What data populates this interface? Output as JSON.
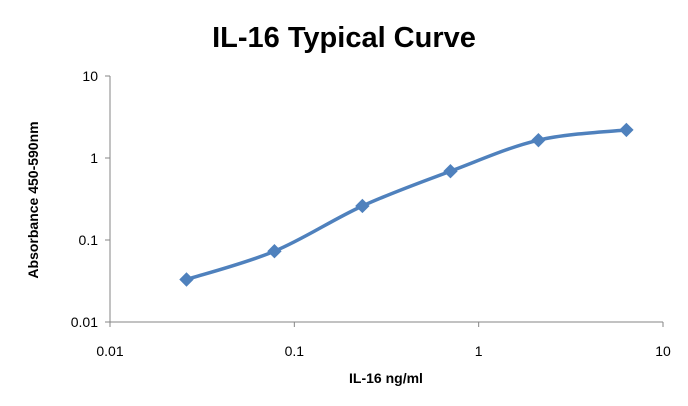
{
  "chart_data": {
    "type": "line",
    "title": "IL-16 Typical Curve",
    "xlabel": "IL-16 ng/ml",
    "ylabel": "Absorbance 450-590nm",
    "x_scale": "log",
    "y_scale": "log",
    "xlim": [
      0.01,
      10
    ],
    "ylim": [
      0.01,
      10
    ],
    "x_ticks": [
      0.01,
      0.1,
      1,
      10
    ],
    "x_tick_labels": [
      "0.01",
      "0.1",
      "1",
      "10"
    ],
    "y_ticks": [
      0.01,
      0.1,
      1,
      10
    ],
    "y_tick_labels": [
      "0.01",
      "0.1",
      "1",
      "10"
    ],
    "grid": false,
    "legend": "none",
    "marker": "diamond",
    "line_style": "smooth",
    "series": [
      {
        "color": "#4F81BD",
        "x": [
          0.026,
          0.078,
          0.234,
          0.703,
          2.11,
          6.33
        ],
        "y": [
          0.033,
          0.073,
          0.26,
          0.69,
          1.65,
          2.2
        ]
      }
    ]
  }
}
